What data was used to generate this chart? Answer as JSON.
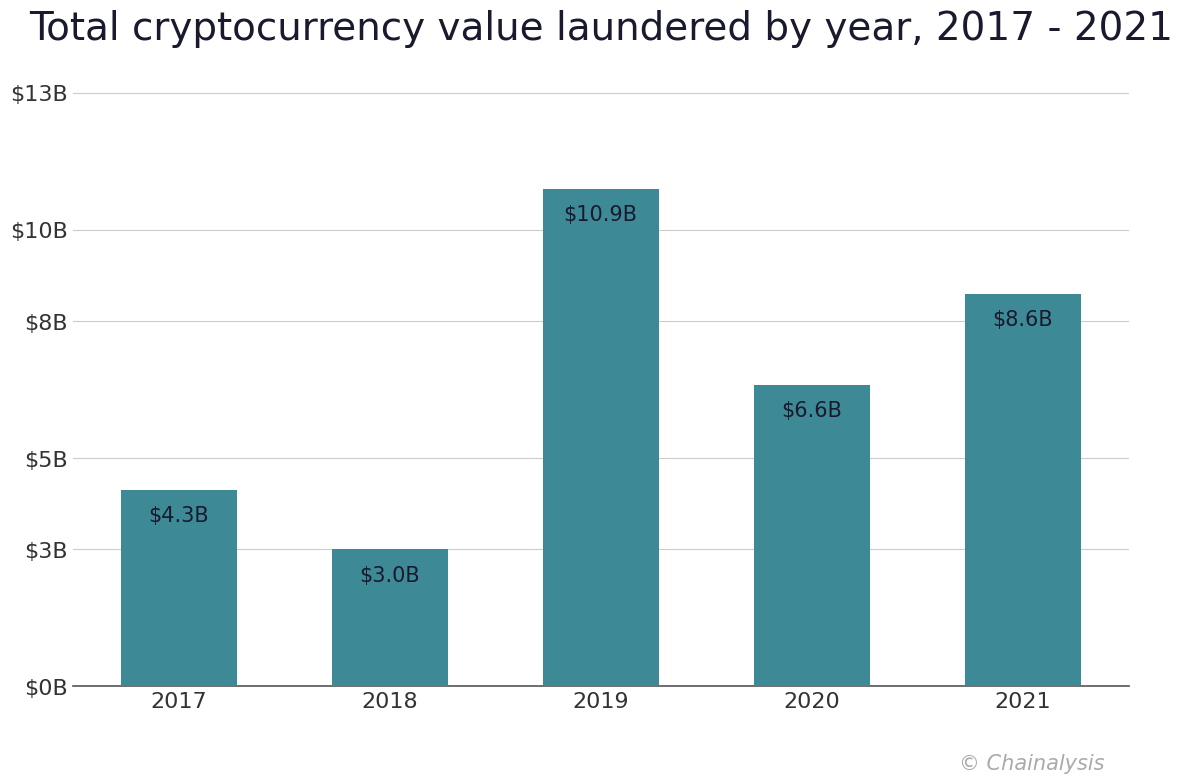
{
  "title": "Total cryptocurrency value laundered by year, 2017 - 2021",
  "categories": [
    "2017",
    "2018",
    "2019",
    "2020",
    "2021"
  ],
  "values": [
    4.3,
    3.0,
    10.9,
    6.6,
    8.6
  ],
  "labels": [
    "$4.3B",
    "$3.0B",
    "$10.9B",
    "$6.6B",
    "$8.6B"
  ],
  "bar_color": "#3d8a96",
  "background_color": "#ffffff",
  "yticks": [
    0,
    3,
    5,
    8,
    10,
    13
  ],
  "ytick_labels": [
    "$0B",
    "$3B",
    "$5B",
    "$8B",
    "$10B",
    "$13B"
  ],
  "ylim": [
    0,
    13.5
  ],
  "grid_color": "#cccccc",
  "title_fontsize": 28,
  "tick_fontsize": 16,
  "label_fontsize": 15,
  "label_color": "#1a1a2e",
  "watermark": "© Chainalysis",
  "watermark_color": "#aaaaaa",
  "watermark_fontsize": 15,
  "bar_width": 0.55
}
